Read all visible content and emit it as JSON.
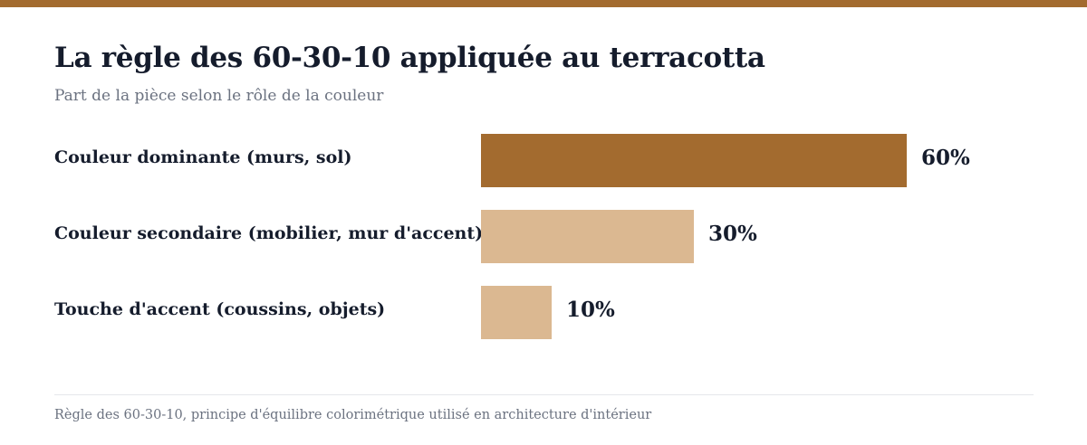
{
  "chart_data": {
    "type": "bar",
    "orientation": "horizontal",
    "title": "La règle des 60-30-10 appliquée au terracotta",
    "subtitle": "Part de la pièce selon le rôle de la couleur",
    "categories": [
      "Couleur dominante (murs, sol)",
      "Couleur secondaire (mobilier, mur d'accent)",
      "Touche d'accent (coussins, objets)"
    ],
    "values": [
      60,
      30,
      10
    ],
    "value_labels": [
      "60%",
      "30%",
      "10%"
    ],
    "bar_colors": [
      "#a36b2f",
      "#dbb891",
      "#dbb891"
    ],
    "xlim": [
      0,
      60
    ],
    "grid": false,
    "legend": "none",
    "source": "Règle des 60-30-10, principe d'équilibre colorimétrique utilisé en architecture d'intérieur"
  },
  "colors": {
    "accent": "#a36b2f",
    "light": "#dbb891",
    "text": "#151c2c",
    "muted": "#6b7280"
  }
}
